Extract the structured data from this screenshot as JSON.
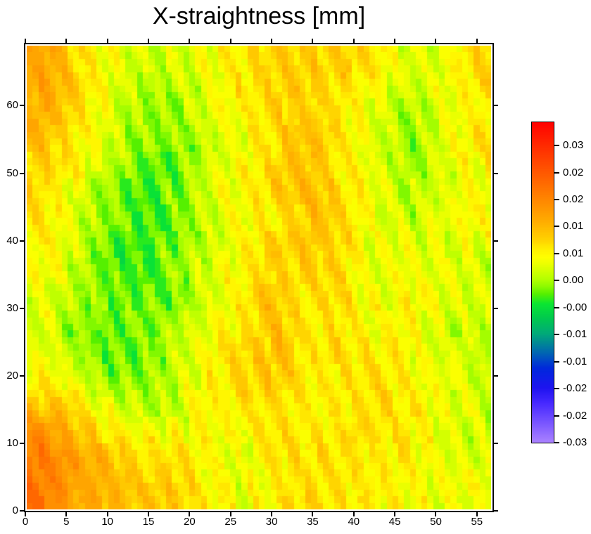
{
  "title": "X-straightness [mm]",
  "chart_data": {
    "type": "heatmap",
    "title": "X-straightness [mm]",
    "unit": "mm",
    "x_axis": {
      "range": [
        0,
        56.9
      ],
      "ticks": [
        0,
        5,
        10,
        15,
        20,
        25,
        30,
        35,
        40,
        45,
        50,
        55
      ],
      "tick_labels": [
        "0",
        "5",
        "10",
        "15",
        "20",
        "25",
        "30",
        "35",
        "40",
        "45",
        "50",
        "55"
      ]
    },
    "y_axis": {
      "range": [
        0,
        69.1
      ],
      "ticks": [
        0,
        10,
        20,
        30,
        40,
        50,
        60
      ],
      "tick_labels": [
        "0",
        "10",
        "20",
        "30",
        "40",
        "50",
        "60"
      ]
    },
    "colorbar": {
      "value_top": 0.0347,
      "value_bottom": -0.03,
      "tick_value_first": 0.03,
      "tick_value_last": -0.03,
      "tick_labels": [
        "0.03",
        "0.02",
        "0.02",
        "0.01",
        "0.01",
        "0.00",
        "-0.00",
        "-0.01",
        "-0.01",
        "-0.02",
        "-0.02",
        "-0.03"
      ],
      "colormap_stops": [
        [
          0.035,
          "#ff0000"
        ],
        [
          0.028,
          "#ff3c00"
        ],
        [
          0.022,
          "#ff6e00"
        ],
        [
          0.015,
          "#ffaa00"
        ],
        [
          0.011,
          "#ffd200"
        ],
        [
          0.009,
          "#fff000"
        ],
        [
          0.0075,
          "#ffff00"
        ],
        [
          0.006,
          "#eaff00"
        ],
        [
          0.003,
          "#b4ff00"
        ],
        [
          0.0015,
          "#8cfa00"
        ],
        [
          0.0,
          "#55f000"
        ],
        [
          -0.002,
          "#0ae632"
        ],
        [
          -0.005,
          "#00c850"
        ],
        [
          -0.008,
          "#00aa78"
        ],
        [
          -0.012,
          "#0064b4"
        ],
        [
          -0.015,
          "#0028dc"
        ],
        [
          -0.019,
          "#1e14f0"
        ],
        [
          -0.022,
          "#4628ff"
        ],
        [
          -0.03,
          "#aa82ff"
        ]
      ]
    },
    "grid": {
      "cols": 80,
      "rows": 70
    },
    "values_coarse": {
      "note": "Regional mean X-straightness error in mm read from the map; 14 cols spanning x 0-56.9, 12 rows spanning y 0-69.1, row 0 = top (y=69).",
      "cols": 14,
      "rows": 12,
      "data": [
        [
          0.015,
          0.011,
          0.007,
          0.004,
          0.005,
          0.007,
          0.01,
          0.011,
          0.011,
          0.012,
          0.009,
          0.005,
          0.006,
          0.01
        ],
        [
          0.015,
          0.01,
          0.006,
          0.002,
          0.003,
          0.006,
          0.009,
          0.011,
          0.012,
          0.009,
          0.006,
          0.003,
          0.006,
          0.009
        ],
        [
          0.013,
          0.009,
          0.005,
          0.001,
          0.001,
          0.004,
          0.007,
          0.01,
          0.013,
          0.009,
          0.005,
          0.002,
          0.006,
          0.009
        ],
        [
          0.011,
          0.007,
          0.002,
          0.0,
          0.001,
          0.005,
          0.008,
          0.011,
          0.012,
          0.01,
          0.006,
          0.003,
          0.005,
          0.007
        ],
        [
          0.009,
          0.005,
          0.001,
          -0.001,
          0.001,
          0.004,
          0.008,
          0.009,
          0.013,
          0.011,
          0.006,
          0.004,
          0.006,
          0.008
        ],
        [
          0.008,
          0.004,
          0.0,
          -0.001,
          0.002,
          0.005,
          0.008,
          0.011,
          0.012,
          0.01,
          0.006,
          0.007,
          0.006,
          0.005
        ],
        [
          0.006,
          0.004,
          0.001,
          0.0,
          0.001,
          0.005,
          0.009,
          0.012,
          0.009,
          0.01,
          0.006,
          0.008,
          0.006,
          0.005
        ],
        [
          0.005,
          0.002,
          0.0,
          0.001,
          0.004,
          0.006,
          0.01,
          0.013,
          0.009,
          0.01,
          0.008,
          0.008,
          0.005,
          0.004
        ],
        [
          0.008,
          0.005,
          0.001,
          0.001,
          0.004,
          0.008,
          0.011,
          0.012,
          0.009,
          0.009,
          0.01,
          0.008,
          0.006,
          0.004
        ],
        [
          0.014,
          0.011,
          0.007,
          0.003,
          0.005,
          0.008,
          0.008,
          0.009,
          0.008,
          0.009,
          0.01,
          0.009,
          0.006,
          0.005
        ],
        [
          0.02,
          0.015,
          0.012,
          0.01,
          0.009,
          0.007,
          0.006,
          0.01,
          0.009,
          0.011,
          0.009,
          0.009,
          0.006,
          0.005
        ],
        [
          0.021,
          0.016,
          0.014,
          0.012,
          0.011,
          0.009,
          0.006,
          0.009,
          0.01,
          0.009,
          0.009,
          0.007,
          0.006,
          0.006
        ]
      ]
    },
    "texture": {
      "note": "Diagonal measurement fringes parallel to lines x = c - y/stripe_slope (steeply tilted, shifting right as y decreases).",
      "stripe_slope": 3.2,
      "stripe_period_x": 3.4,
      "stripe_amplitude": 0.0021,
      "stripe_phase": -1.0,
      "segment_noise": 0.0013,
      "cell_noise": 0.0007,
      "quantize_step": 0.0012
    }
  }
}
